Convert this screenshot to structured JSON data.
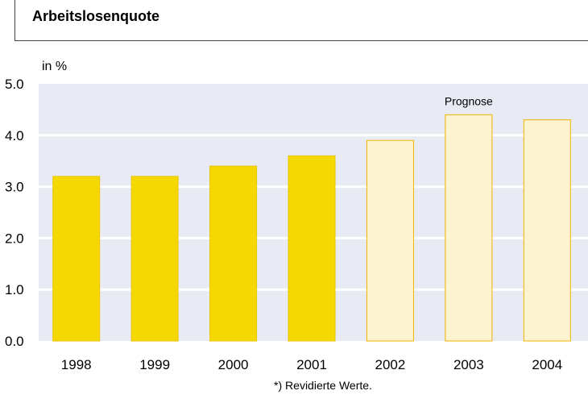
{
  "chart_data": {
    "type": "bar",
    "title": "Arbeitslosenquote",
    "unit_label": "in %",
    "categories": [
      "1998",
      "1999",
      "2000",
      "2001",
      "2002",
      "2003",
      "2004"
    ],
    "series": [
      {
        "values": [
          3.2,
          3.2,
          3.4,
          3.6,
          3.9,
          4.4,
          4.3
        ]
      }
    ],
    "forecast_from_index": 4,
    "annotation": "Prognose",
    "footnote": "*) Revidierte Werte.",
    "y_ticks": [
      "0.0",
      "1.0",
      "2.0",
      "3.0",
      "4.0",
      "5.0"
    ],
    "ylim": [
      0,
      5
    ],
    "grid": true,
    "colors": {
      "actual_fill": "#f5d800",
      "actual_stroke": "#e8c400",
      "forecast_fill": "#fdf3d0",
      "forecast_stroke": "#f0b400",
      "plot_background": "#e8eaf4",
      "gridline": "#ffffff"
    }
  }
}
